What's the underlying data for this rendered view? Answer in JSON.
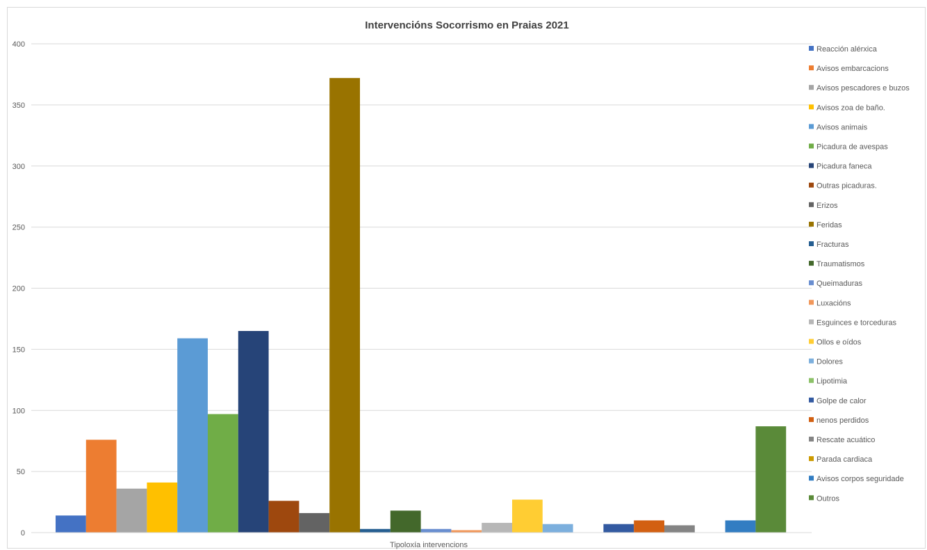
{
  "chart_data": {
    "type": "bar",
    "title": "Intervencións Socorrismo en Praias 2021",
    "xlabel": "Tipoloxía intervencions",
    "ylabel": "",
    "ylim": [
      0,
      400
    ],
    "yticks": [
      0,
      50,
      100,
      150,
      200,
      250,
      300,
      350,
      400
    ],
    "grid": true,
    "legend_position": "right",
    "categories": [
      "Tipoloxía intervencions"
    ],
    "series": [
      {
        "name": "Reacción alérxica",
        "values": [
          14
        ],
        "color": "#4472c4"
      },
      {
        "name": "Avisos embarcacions",
        "values": [
          76
        ],
        "color": "#ed7d31"
      },
      {
        "name": "Avisos pescadores e buzos",
        "values": [
          36
        ],
        "color": "#a5a5a5"
      },
      {
        "name": "Avisos zoa de baño.",
        "values": [
          41
        ],
        "color": "#ffc000"
      },
      {
        "name": "Avisos animais",
        "values": [
          159
        ],
        "color": "#5b9bd5"
      },
      {
        "name": "Picadura de avespas",
        "values": [
          97
        ],
        "color": "#70ad47"
      },
      {
        "name": "Picadura faneca",
        "values": [
          165
        ],
        "color": "#264478"
      },
      {
        "name": "Outras picaduras.",
        "values": [
          26
        ],
        "color": "#9e480e"
      },
      {
        "name": "Erizos",
        "values": [
          16
        ],
        "color": "#636363"
      },
      {
        "name": "Feridas",
        "values": [
          372
        ],
        "color": "#997300"
      },
      {
        "name": "Fracturas",
        "values": [
          3
        ],
        "color": "#255e91"
      },
      {
        "name": "Traumatismos",
        "values": [
          18
        ],
        "color": "#43682b"
      },
      {
        "name": "Queimaduras",
        "values": [
          3
        ],
        "color": "#698ed0"
      },
      {
        "name": "Luxacións",
        "values": [
          2
        ],
        "color": "#f1975a"
      },
      {
        "name": "Esguinces e torceduras",
        "values": [
          8
        ],
        "color": "#b7b7b7"
      },
      {
        "name": "Ollos e oídos",
        "values": [
          27
        ],
        "color": "#ffcd33"
      },
      {
        "name": "Dolores",
        "values": [
          7
        ],
        "color": "#7cafdd"
      },
      {
        "name": "Lipotimia",
        "values": [
          0
        ],
        "color": "#8cc168"
      },
      {
        "name": "Golpe de calor",
        "values": [
          7
        ],
        "color": "#335aa1"
      },
      {
        "name": "nenos perdidos",
        "values": [
          10
        ],
        "color": "#d26012"
      },
      {
        "name": "Rescate acuático",
        "values": [
          6
        ],
        "color": "#848484"
      },
      {
        "name": "Parada cardiaca",
        "values": [
          0
        ],
        "color": "#cc9a00"
      },
      {
        "name": "Avisos corpos seguridade",
        "values": [
          10
        ],
        "color": "#327dc2"
      },
      {
        "name": "Outros",
        "values": [
          87
        ],
        "color": "#5a8a39"
      }
    ]
  }
}
